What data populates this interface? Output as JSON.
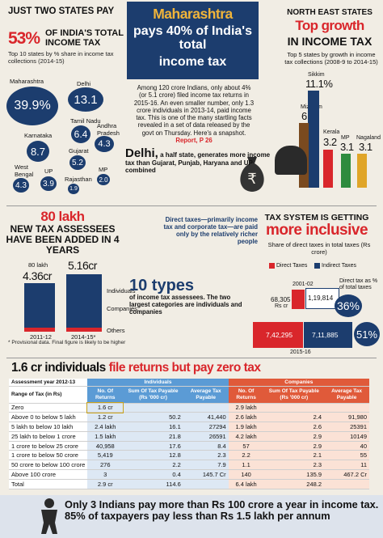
{
  "top_left": {
    "heading": "Just two states pay",
    "pct": "53%",
    "pct_label": "of India's total income tax",
    "subheading": "Top 10 states by % share in income tax collections (2014-15)",
    "states": [
      {
        "name": "Maharashtra",
        "value": "39.9%"
      },
      {
        "name": "Delhi",
        "value": "13.1"
      },
      {
        "name": "Tamil Nadu",
        "value": "6.4"
      },
      {
        "name": "Andhra Pradesh",
        "value": "4.3"
      },
      {
        "name": "Karnataka",
        "value": "8.7"
      },
      {
        "name": "Gujarat",
        "value": "5.2"
      },
      {
        "name": "West Bengal",
        "value": "4.3"
      },
      {
        "name": "UP",
        "value": "3.9"
      },
      {
        "name": "Rajasthan",
        "value": "1.9"
      },
      {
        "name": "MP",
        "value": "2.0"
      }
    ]
  },
  "center_top": {
    "title1": "Maharashtra",
    "title2": "pays 40% of India's total",
    "title3": "income tax",
    "body": "Among 120 crore Indians, only about 4% (or 5.1 crore) filed income tax returns in 2015-16. An even smaller number, only 1.3 crore individuals in 2013-14, paid income tax. This is one of the many startling facts revealed in a set of data released by the govt on Thursday. Here's a snapshot.",
    "ref": "Report, P 26"
  },
  "delhi": {
    "big": "Delhi,",
    "text": "a half state, generates more income tax than Gujarat, Punjab, Haryana and UP combined"
  },
  "top_right": {
    "h1": "North East states",
    "h2": "Top growth",
    "h3": "in income tax",
    "sub": "Top 5 states by growth in income tax collections (2008-9 to 2014-15)",
    "states": [
      {
        "name": "Sikkim",
        "value": "11.1%"
      },
      {
        "name": "Mizoram",
        "value": "6.1"
      },
      {
        "name": "Kerala",
        "value": "3.2"
      },
      {
        "name": "MP",
        "value": "3.1"
      },
      {
        "name": "Nagaland",
        "value": "3.1"
      }
    ]
  },
  "mid_left": {
    "h1": "80 lakh",
    "h2": "new tax assessees have been added in 4 years",
    "lbl1_small": "80 lakh",
    "val1": "4.36cr",
    "val2": "5.16cr",
    "year1": "2011-12",
    "year2": "2014-15*",
    "seg_individuals": "Individuals",
    "seg_companies": "Companies",
    "seg_others": "Others",
    "note": "* Provisional data. Final figure is likely to be higher"
  },
  "mid_center": {
    "direct": "Direct taxes—primarily income tax and corporate tax—are paid only by the relatively richer people",
    "types_big": "10 types",
    "types_text": "of income tax assessees. The two largest categories are individuals and companies"
  },
  "mid_right": {
    "h1": "Tax system is getting",
    "h2": "more inclusive",
    "sub": "Share of direct taxes in total taxes (Rs crore)",
    "legend_direct": "Direct Taxes",
    "legend_indirect": "Indirect Taxes",
    "year1": "2001-02",
    "direct1": "68,305",
    "direct1_unit": "Rs cr",
    "indirect1": "1,19,814",
    "pct_note": "Direct tax as % of total taxes",
    "pct1": "36%",
    "direct2": "7,42,295",
    "indirect2": "7,11,885",
    "year2": "2015-16",
    "pct2": "51%",
    "colors": {
      "direct": "#d9262b",
      "indirect": "#1c3d6e"
    }
  },
  "table": {
    "heading_a": "1.6 cr individuals",
    "heading_b": "file returns but pay zero tax",
    "assessment_year": "Assessment year 2012-13",
    "group_individuals": "Individuals",
    "group_companies": "Companies",
    "col_range": "Range of Tax (in Rs)",
    "col_returns": "No. Of Returns",
    "col_sum": "Sum Of Tax Payable (Rs '000 cr)",
    "col_avg": "Average Tax Payable",
    "rows": [
      [
        "Zero",
        "1.6 cr",
        "",
        "",
        "2.9 lakh",
        "",
        ""
      ],
      [
        "Above 0 to below 5 lakh",
        "1.2 cr",
        "50.2",
        "41,440",
        "2.6 lakh",
        "2.4",
        "91,980"
      ],
      [
        "5 lakh to below 10 lakh",
        "2.4 lakh",
        "16.1",
        "27294",
        "1.9 lakh",
        "2.6",
        "25391"
      ],
      [
        "25 lakh to below 1 crore",
        "1.5 lakh",
        "21.8",
        "26591",
        "4.2 lakh",
        "2.9",
        "10149"
      ],
      [
        "1 crore to below 25 crore",
        "40,958",
        "17.6",
        "8.4",
        "57",
        "2.9",
        "40"
      ],
      [
        "1 crore to below 50 crore",
        "5,419",
        "12.8",
        "2.3",
        "2.2",
        "2.1",
        "55"
      ],
      [
        "50 crore to below 100 crore",
        "276",
        "2.2",
        "7.9",
        "1.1",
        "2.3",
        "11"
      ],
      [
        "Above 100 crore",
        "3",
        "0.4",
        "145.7 Cr",
        "140",
        "135.9",
        "467.2 Cr"
      ],
      [
        "Total",
        "2.9 cr",
        "114.6",
        "",
        "6.4 lakh",
        "248.2",
        ""
      ]
    ]
  },
  "footer": {
    "line1": "Only 3 Indians pay more than Rs 100 crore a year in income tax.",
    "line2": "85% of taxpayers pay less than Rs 1.5 lakh per annum"
  }
}
